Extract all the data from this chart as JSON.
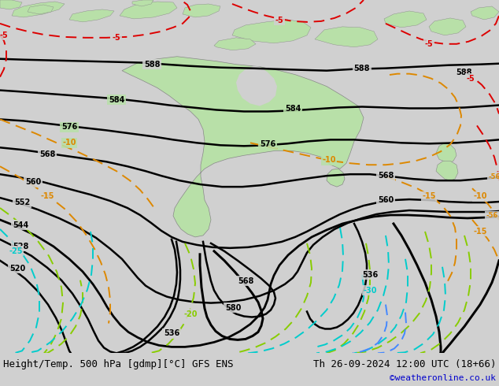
{
  "title_left": "Height/Temp. 500 hPa [gdmp][°C] GFS ENS",
  "title_right": "Th 26-09-2024 12:00 UTC (18+66)",
  "watermark": "©weatheronline.co.uk",
  "bg_color": "#d0d0d0",
  "land_color": "#b8e0a8",
  "ocean_color": "#d0d0d0",
  "black_contour_color": "#000000",
  "red_contour_color": "#dd0000",
  "orange_contour_color": "#dd8800",
  "green_contour_color": "#88cc00",
  "cyan_contour_color": "#00cccc",
  "blue_contour_color": "#4488ff",
  "footer_bg": "#ffffff",
  "footer_text_color": "#000000",
  "watermark_color": "#0000cc",
  "font_size_footer": 9
}
